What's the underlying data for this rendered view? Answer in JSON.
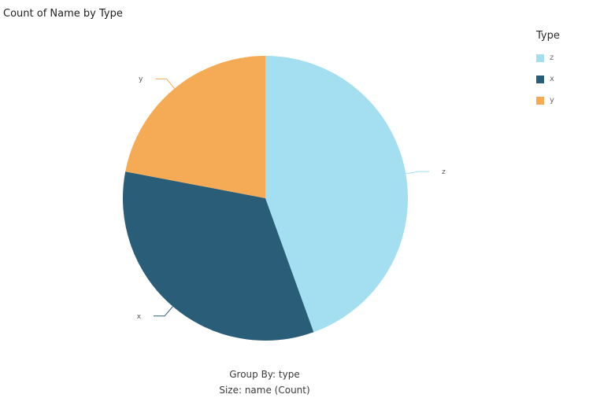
{
  "chart_data": {
    "type": "pie",
    "title": "Count of Name by Type",
    "categories": [
      "z",
      "x",
      "y"
    ],
    "values": [
      44.5,
      33.5,
      22.0
    ],
    "colors": [
      "#a3dff0",
      "#2a5d78",
      "#f5ab55"
    ],
    "legend": {
      "title": "Type",
      "position": "top-right",
      "items": [
        {
          "label": "z",
          "color": "#a3dff0"
        },
        {
          "label": "x",
          "color": "#2a5d78"
        },
        {
          "label": "y",
          "color": "#f5ab55"
        }
      ]
    },
    "footer": {
      "group_by": "Group By: type",
      "size": "Size: name (Count)"
    }
  }
}
